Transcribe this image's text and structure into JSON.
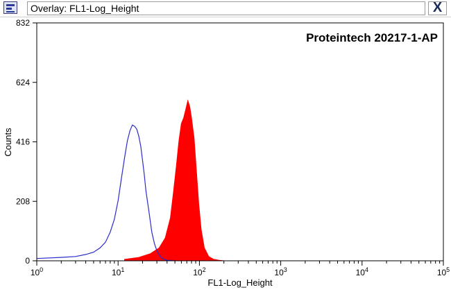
{
  "window": {
    "title": "Overlay: FL1-Log_Height",
    "app_icon": "histogram-app-icon",
    "close_label": "X"
  },
  "colors": {
    "filled_series": "#ff0000",
    "outline_series": "#2b2bcc",
    "axis": "#000000"
  },
  "chart_data": {
    "type": "area",
    "annotation": "Proteintech 20217-1-AP",
    "xlabel": "FL1-Log_Height",
    "ylabel": "Counts",
    "x_scale": "log",
    "xlim": [
      1,
      100000
    ],
    "ylim": [
      0,
      832
    ],
    "x_ticks": [
      {
        "value": 1,
        "base": "10",
        "exp": "0"
      },
      {
        "value": 10,
        "base": "10",
        "exp": "1"
      },
      {
        "value": 100,
        "base": "10",
        "exp": "2"
      },
      {
        "value": 1000,
        "base": "10",
        "exp": "3"
      },
      {
        "value": 10000,
        "base": "10",
        "exp": "4"
      },
      {
        "value": 100000,
        "base": "10",
        "exp": "5"
      }
    ],
    "y_ticks": [
      "0",
      "208",
      "416",
      "624",
      "832"
    ],
    "y_tick_values": [
      0,
      208,
      416,
      624,
      832
    ],
    "grid": false,
    "series": [
      {
        "style": "filled",
        "x": [
          12,
          18,
          25,
          32,
          38,
          44,
          48,
          52,
          56,
          60,
          64,
          68,
          72,
          76,
          80,
          86,
          92,
          98,
          105,
          115,
          130,
          150,
          175,
          200
        ],
        "y": [
          5,
          12,
          25,
          45,
          80,
          150,
          240,
          330,
          420,
          480,
          500,
          530,
          560,
          540,
          500,
          430,
          310,
          200,
          110,
          45,
          15,
          5,
          2,
          0
        ]
      },
      {
        "style": "outline",
        "x": [
          1,
          2,
          3,
          4,
          5,
          6,
          7,
          8,
          9,
          10,
          11,
          12,
          13,
          14,
          15,
          16,
          17,
          18,
          19,
          20,
          21,
          22,
          24,
          26,
          28,
          30,
          33,
          36,
          40,
          45,
          50
        ],
        "y": [
          8,
          12,
          15,
          22,
          30,
          45,
          65,
          100,
          145,
          210,
          290,
          360,
          420,
          455,
          475,
          470,
          460,
          435,
          400,
          350,
          300,
          245,
          170,
          100,
          60,
          35,
          15,
          6,
          2,
          1,
          0
        ]
      }
    ]
  }
}
